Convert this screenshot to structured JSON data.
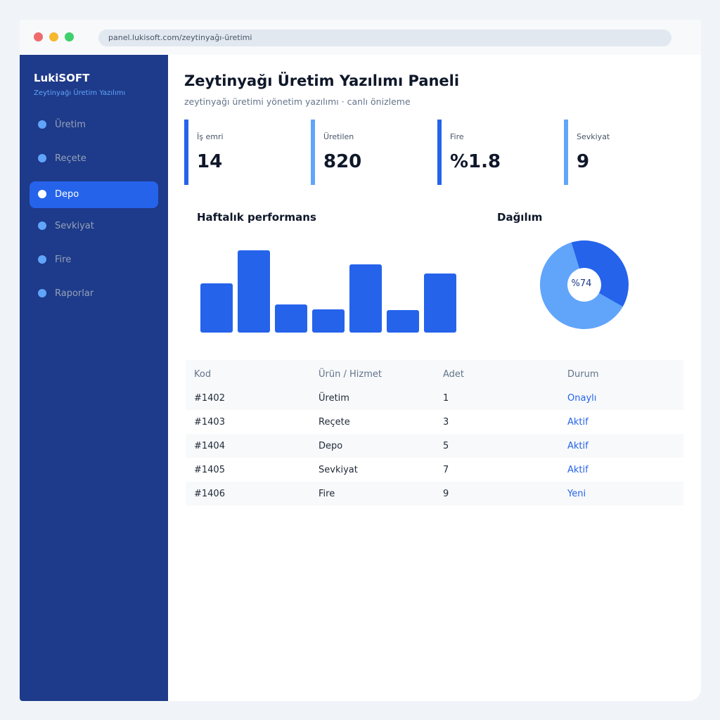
{
  "browser": {
    "url": "panel.lukisoft.com/zeytinyağı-üretimi"
  },
  "sidebar": {
    "brand": "LukiSOFT",
    "subtitle": "Zeytinyağı Üretim Yazılımı",
    "items": [
      {
        "label": "Üretim",
        "active": false
      },
      {
        "label": "Reçete",
        "active": false
      },
      {
        "label": "Depo",
        "active": true
      },
      {
        "label": "Sevkiyat",
        "active": false
      },
      {
        "label": "Fire",
        "active": false
      },
      {
        "label": "Raporlar",
        "active": false
      }
    ]
  },
  "header": {
    "title": "Zeytinyağı Üretim Yazılımı Paneli",
    "subtitle": "zeytinyağı üretimi yönetim yazılımı · canlı önizleme"
  },
  "stats": [
    {
      "label": "İş emri",
      "value": "14"
    },
    {
      "label": "Üretilen",
      "value": "820"
    },
    {
      "label": "Fire",
      "value": "%1.8"
    },
    {
      "label": "Sevkiyat",
      "value": "9"
    }
  ],
  "charts": {
    "performance_title": "Haftalık performans",
    "distribution_title": "Dağılım",
    "donut_label": "%74"
  },
  "chart_data": [
    {
      "type": "bar",
      "values": [
        70,
        117,
        40,
        33,
        97,
        32,
        84
      ],
      "ylim": [
        0,
        120
      ],
      "color": "#2563eb"
    },
    {
      "type": "pie",
      "values": [
        38,
        62
      ],
      "colors": [
        "#2563eb",
        "#60a5fa"
      ]
    }
  ],
  "table": {
    "headers": [
      "Kod",
      "Ürün / Hizmet",
      "Adet",
      "Durum"
    ],
    "rows": [
      [
        "#1402",
        "Üretim",
        "1",
        "Onaylı"
      ],
      [
        "#1403",
        "Reçete",
        "3",
        "Aktif"
      ],
      [
        "#1404",
        "Depo",
        "5",
        "Aktif"
      ],
      [
        "#1405",
        "Sevkiyat",
        "7",
        "Aktif"
      ],
      [
        "#1406",
        "Fire",
        "9",
        "Yeni"
      ]
    ]
  },
  "colors": {
    "sidebar": "#1e3a8a",
    "accent": "#2563eb",
    "accent_light": "#60a5fa"
  }
}
